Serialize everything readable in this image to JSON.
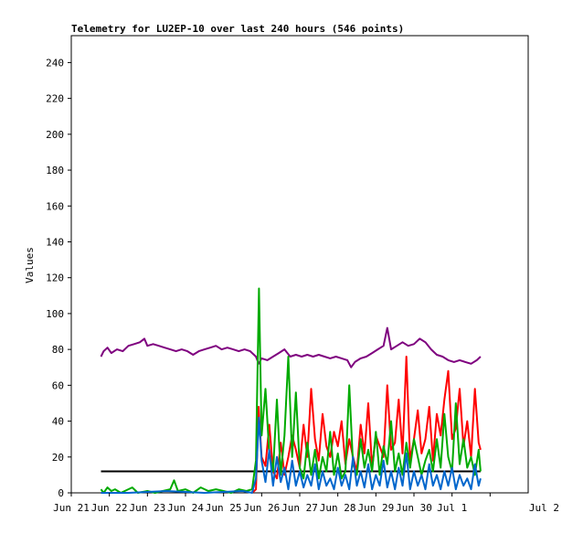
{
  "chart_data": {
    "type": "line",
    "title": "Telemetry for LU2EP-10 over last 240 hours (546 points)",
    "xlabel": "",
    "ylabel": "Values",
    "ylim": [
      0,
      255
    ],
    "xlim": [
      0,
      12
    ],
    "grid": false,
    "legend": "none",
    "yticks": [
      0,
      20,
      40,
      60,
      80,
      100,
      120,
      140,
      160,
      180,
      200,
      220,
      240
    ],
    "xticks": [
      {
        "x": 0,
        "label": "Jun 21"
      },
      {
        "x": 1,
        "label": "Jun 22"
      },
      {
        "x": 2,
        "label": "Jun 23"
      },
      {
        "x": 3,
        "label": "Jun 24"
      },
      {
        "x": 4,
        "label": "Jun 25"
      },
      {
        "x": 5,
        "label": "Jun 26"
      },
      {
        "x": 6,
        "label": "Jun 27"
      },
      {
        "x": 7,
        "label": "Jun 28"
      },
      {
        "x": 8,
        "label": "Jun 29"
      },
      {
        "x": 9,
        "label": "Jun 30"
      },
      {
        "x": 10,
        "label": "Jul 1"
      },
      {
        "x": 11,
        "label": "Jul 2"
      }
    ],
    "series": [
      {
        "color": "#7f007f",
        "points": [
          [
            0.78,
            76
          ],
          [
            0.85,
            79
          ],
          [
            0.95,
            81
          ],
          [
            1.05,
            78
          ],
          [
            1.2,
            80
          ],
          [
            1.35,
            79
          ],
          [
            1.5,
            82
          ],
          [
            1.65,
            83
          ],
          [
            1.8,
            84
          ],
          [
            1.92,
            86
          ],
          [
            2.0,
            82
          ],
          [
            2.15,
            83
          ],
          [
            2.3,
            82
          ],
          [
            2.45,
            81
          ],
          [
            2.6,
            80
          ],
          [
            2.75,
            79
          ],
          [
            2.9,
            80
          ],
          [
            3.05,
            79
          ],
          [
            3.2,
            77
          ],
          [
            3.35,
            79
          ],
          [
            3.5,
            80
          ],
          [
            3.65,
            81
          ],
          [
            3.8,
            82
          ],
          [
            3.95,
            80
          ],
          [
            4.1,
            81
          ],
          [
            4.25,
            80
          ],
          [
            4.4,
            79
          ],
          [
            4.55,
            80
          ],
          [
            4.7,
            79
          ],
          [
            4.85,
            76
          ],
          [
            4.92,
            72
          ],
          [
            5.0,
            75
          ],
          [
            5.15,
            74
          ],
          [
            5.3,
            76
          ],
          [
            5.45,
            78
          ],
          [
            5.6,
            80
          ],
          [
            5.75,
            76
          ],
          [
            5.9,
            77
          ],
          [
            6.05,
            76
          ],
          [
            6.2,
            77
          ],
          [
            6.35,
            76
          ],
          [
            6.5,
            77
          ],
          [
            6.65,
            76
          ],
          [
            6.8,
            75
          ],
          [
            6.95,
            76
          ],
          [
            7.1,
            75
          ],
          [
            7.25,
            74
          ],
          [
            7.35,
            70
          ],
          [
            7.45,
            73
          ],
          [
            7.6,
            75
          ],
          [
            7.75,
            76
          ],
          [
            7.9,
            78
          ],
          [
            8.05,
            80
          ],
          [
            8.2,
            82
          ],
          [
            8.3,
            92
          ],
          [
            8.4,
            80
          ],
          [
            8.55,
            82
          ],
          [
            8.7,
            84
          ],
          [
            8.85,
            82
          ],
          [
            9.0,
            83
          ],
          [
            9.15,
            86
          ],
          [
            9.3,
            84
          ],
          [
            9.45,
            80
          ],
          [
            9.6,
            77
          ],
          [
            9.75,
            76
          ],
          [
            9.9,
            74
          ],
          [
            10.05,
            73
          ],
          [
            10.2,
            74
          ],
          [
            10.35,
            73
          ],
          [
            10.5,
            72
          ],
          [
            10.65,
            74
          ],
          [
            10.75,
            76
          ]
        ]
      },
      {
        "color": "#000000",
        "points": [
          [
            0.78,
            12
          ],
          [
            10.75,
            12
          ]
        ]
      },
      {
        "color": "#ff0000",
        "points": [
          [
            4.75,
            0
          ],
          [
            4.85,
            2
          ],
          [
            4.92,
            48
          ],
          [
            5.0,
            20
          ],
          [
            5.1,
            15
          ],
          [
            5.2,
            38
          ],
          [
            5.3,
            12
          ],
          [
            5.4,
            8
          ],
          [
            5.5,
            28
          ],
          [
            5.6,
            10
          ],
          [
            5.7,
            20
          ],
          [
            5.8,
            32
          ],
          [
            5.9,
            24
          ],
          [
            6.0,
            14
          ],
          [
            6.1,
            38
          ],
          [
            6.2,
            20
          ],
          [
            6.3,
            58
          ],
          [
            6.4,
            30
          ],
          [
            6.5,
            18
          ],
          [
            6.6,
            44
          ],
          [
            6.7,
            26
          ],
          [
            6.8,
            20
          ],
          [
            6.9,
            34
          ],
          [
            7.0,
            26
          ],
          [
            7.1,
            40
          ],
          [
            7.2,
            16
          ],
          [
            7.3,
            30
          ],
          [
            7.4,
            20
          ],
          [
            7.5,
            12
          ],
          [
            7.6,
            38
          ],
          [
            7.7,
            22
          ],
          [
            7.8,
            50
          ],
          [
            7.9,
            14
          ],
          [
            8.0,
            32
          ],
          [
            8.1,
            26
          ],
          [
            8.2,
            20
          ],
          [
            8.3,
            60
          ],
          [
            8.4,
            24
          ],
          [
            8.5,
            28
          ],
          [
            8.6,
            52
          ],
          [
            8.7,
            22
          ],
          [
            8.8,
            76
          ],
          [
            8.9,
            18
          ],
          [
            9.0,
            30
          ],
          [
            9.1,
            46
          ],
          [
            9.2,
            22
          ],
          [
            9.3,
            30
          ],
          [
            9.4,
            48
          ],
          [
            9.5,
            18
          ],
          [
            9.6,
            44
          ],
          [
            9.7,
            32
          ],
          [
            9.8,
            52
          ],
          [
            9.9,
            68
          ],
          [
            10.0,
            30
          ],
          [
            10.1,
            36
          ],
          [
            10.2,
            58
          ],
          [
            10.3,
            26
          ],
          [
            10.4,
            40
          ],
          [
            10.5,
            20
          ],
          [
            10.6,
            58
          ],
          [
            10.7,
            28
          ],
          [
            10.75,
            24
          ]
        ]
      },
      {
        "color": "#00aa00",
        "points": [
          [
            0.78,
            2
          ],
          [
            0.85,
            0
          ],
          [
            0.95,
            3
          ],
          [
            1.05,
            1
          ],
          [
            1.15,
            2
          ],
          [
            1.3,
            0
          ],
          [
            1.5,
            2
          ],
          [
            1.6,
            3
          ],
          [
            1.75,
            0
          ],
          [
            2.0,
            1
          ],
          [
            2.2,
            0
          ],
          [
            2.4,
            1
          ],
          [
            2.6,
            2
          ],
          [
            2.7,
            7
          ],
          [
            2.8,
            1
          ],
          [
            3.0,
            2
          ],
          [
            3.2,
            0
          ],
          [
            3.4,
            3
          ],
          [
            3.6,
            1
          ],
          [
            3.8,
            2
          ],
          [
            4.0,
            1
          ],
          [
            4.2,
            0
          ],
          [
            4.4,
            2
          ],
          [
            4.6,
            1
          ],
          [
            4.75,
            2
          ],
          [
            4.85,
            18
          ],
          [
            4.93,
            114
          ],
          [
            5.0,
            32
          ],
          [
            5.1,
            58
          ],
          [
            5.2,
            22
          ],
          [
            5.3,
            12
          ],
          [
            5.4,
            52
          ],
          [
            5.5,
            10
          ],
          [
            5.6,
            32
          ],
          [
            5.7,
            76
          ],
          [
            5.8,
            20
          ],
          [
            5.9,
            56
          ],
          [
            6.0,
            14
          ],
          [
            6.1,
            8
          ],
          [
            6.2,
            28
          ],
          [
            6.3,
            10
          ],
          [
            6.4,
            24
          ],
          [
            6.5,
            8
          ],
          [
            6.6,
            20
          ],
          [
            6.7,
            12
          ],
          [
            6.8,
            34
          ],
          [
            6.9,
            10
          ],
          [
            7.0,
            22
          ],
          [
            7.1,
            8
          ],
          [
            7.2,
            12
          ],
          [
            7.3,
            60
          ],
          [
            7.4,
            16
          ],
          [
            7.5,
            10
          ],
          [
            7.6,
            30
          ],
          [
            7.7,
            14
          ],
          [
            7.8,
            24
          ],
          [
            7.9,
            12
          ],
          [
            8.0,
            34
          ],
          [
            8.1,
            10
          ],
          [
            8.2,
            26
          ],
          [
            8.3,
            16
          ],
          [
            8.4,
            40
          ],
          [
            8.5,
            12
          ],
          [
            8.6,
            22
          ],
          [
            8.7,
            10
          ],
          [
            8.8,
            28
          ],
          [
            8.9,
            14
          ],
          [
            9.0,
            30
          ],
          [
            9.1,
            20
          ],
          [
            9.2,
            10
          ],
          [
            9.3,
            18
          ],
          [
            9.4,
            24
          ],
          [
            9.5,
            12
          ],
          [
            9.6,
            30
          ],
          [
            9.7,
            14
          ],
          [
            9.8,
            44
          ],
          [
            9.9,
            20
          ],
          [
            10.0,
            12
          ],
          [
            10.1,
            50
          ],
          [
            10.2,
            16
          ],
          [
            10.3,
            30
          ],
          [
            10.4,
            14
          ],
          [
            10.5,
            20
          ],
          [
            10.6,
            10
          ],
          [
            10.7,
            24
          ],
          [
            10.75,
            12
          ]
        ]
      },
      {
        "color": "#0066cc",
        "points": [
          [
            0.78,
            0
          ],
          [
            1.5,
            0
          ],
          [
            2.5,
            1
          ],
          [
            3.5,
            0
          ],
          [
            4.5,
            1
          ],
          [
            4.75,
            0
          ],
          [
            4.85,
            8
          ],
          [
            4.93,
            42
          ],
          [
            5.0,
            18
          ],
          [
            5.1,
            6
          ],
          [
            5.2,
            24
          ],
          [
            5.3,
            4
          ],
          [
            5.4,
            20
          ],
          [
            5.5,
            6
          ],
          [
            5.6,
            14
          ],
          [
            5.7,
            2
          ],
          [
            5.8,
            18
          ],
          [
            5.9,
            4
          ],
          [
            6.0,
            12
          ],
          [
            6.1,
            3
          ],
          [
            6.2,
            10
          ],
          [
            6.3,
            4
          ],
          [
            6.4,
            16
          ],
          [
            6.5,
            2
          ],
          [
            6.6,
            12
          ],
          [
            6.7,
            4
          ],
          [
            6.8,
            8
          ],
          [
            6.9,
            2
          ],
          [
            7.0,
            14
          ],
          [
            7.1,
            4
          ],
          [
            7.2,
            10
          ],
          [
            7.3,
            2
          ],
          [
            7.4,
            20
          ],
          [
            7.5,
            4
          ],
          [
            7.6,
            12
          ],
          [
            7.7,
            3
          ],
          [
            7.8,
            16
          ],
          [
            7.9,
            2
          ],
          [
            8.0,
            10
          ],
          [
            8.1,
            4
          ],
          [
            8.2,
            18
          ],
          [
            8.3,
            3
          ],
          [
            8.4,
            12
          ],
          [
            8.5,
            2
          ],
          [
            8.6,
            14
          ],
          [
            8.7,
            4
          ],
          [
            8.8,
            22
          ],
          [
            8.9,
            2
          ],
          [
            9.0,
            12
          ],
          [
            9.1,
            4
          ],
          [
            9.2,
            10
          ],
          [
            9.3,
            2
          ],
          [
            9.4,
            16
          ],
          [
            9.5,
            4
          ],
          [
            9.6,
            10
          ],
          [
            9.7,
            2
          ],
          [
            9.8,
            12
          ],
          [
            9.9,
            4
          ],
          [
            10.0,
            14
          ],
          [
            10.1,
            2
          ],
          [
            10.2,
            10
          ],
          [
            10.3,
            4
          ],
          [
            10.4,
            8
          ],
          [
            10.5,
            2
          ],
          [
            10.6,
            16
          ],
          [
            10.7,
            4
          ],
          [
            10.75,
            8
          ]
        ]
      }
    ]
  }
}
